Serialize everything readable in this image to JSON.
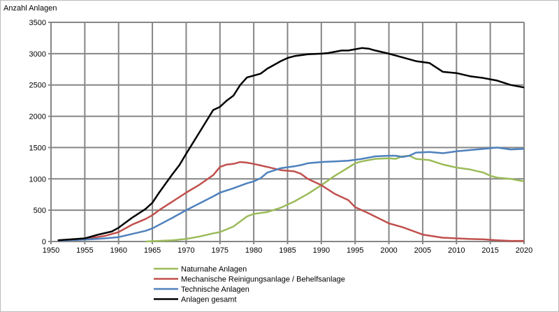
{
  "chart_data": {
    "type": "line",
    "title": "",
    "ylabel": "Anzahl Anlagen",
    "xlabel": "",
    "xlim": [
      1950,
      2020
    ],
    "ylim": [
      0,
      3500
    ],
    "xticks": [
      1950,
      1955,
      1960,
      1965,
      1970,
      1975,
      1980,
      1985,
      1990,
      1995,
      2000,
      2005,
      2010,
      2015,
      2020
    ],
    "yticks": [
      0,
      500,
      1000,
      1500,
      2000,
      2500,
      3000,
      3500
    ],
    "grid": true,
    "legend_position": "bottom",
    "series": [
      {
        "name": "Naturnahe Anlagen",
        "color": "#9bbb59",
        "x": [
          1964,
          1968,
          1970,
          1972,
          1974,
          1975,
          1977,
          1979,
          1980,
          1982,
          1984,
          1986,
          1988,
          1990,
          1992,
          1994,
          1995,
          1996,
          1998,
          2000,
          2001,
          2002,
          2003,
          2004,
          2006,
          2008,
          2010,
          2012,
          2014,
          2015,
          2016,
          2018,
          2020
        ],
        "y": [
          0,
          20,
          40,
          80,
          130,
          150,
          240,
          400,
          440,
          470,
          540,
          640,
          760,
          900,
          1050,
          1180,
          1250,
          1280,
          1320,
          1330,
          1320,
          1360,
          1370,
          1320,
          1300,
          1230,
          1180,
          1150,
          1100,
          1050,
          1020,
          1000,
          960
        ]
      },
      {
        "name": "Mechanische Reinigungsanlage / Behelfsanlage",
        "color": "#c0504d",
        "x": [
          1951,
          1955,
          1958,
          1960,
          1962,
          1964,
          1965,
          1966,
          1968,
          1970,
          1972,
          1974,
          1975,
          1976,
          1977,
          1978,
          1979,
          1980,
          1982,
          1984,
          1986,
          1987,
          1988,
          1990,
          1991,
          1992,
          1994,
          1995,
          1997,
          2000,
          2002,
          2004,
          2005,
          2008,
          2010,
          2012,
          2014,
          2016,
          2018,
          2020
        ],
        "y": [
          15,
          40,
          90,
          150,
          270,
          360,
          420,
          500,
          640,
          780,
          910,
          1060,
          1190,
          1230,
          1240,
          1270,
          1260,
          1240,
          1190,
          1140,
          1120,
          1080,
          1000,
          900,
          830,
          760,
          660,
          550,
          450,
          290,
          230,
          150,
          110,
          60,
          50,
          40,
          35,
          20,
          10,
          10
        ]
      },
      {
        "name": "Technische Anlagen",
        "color": "#4f81bd",
        "x": [
          1951,
          1955,
          1958,
          1960,
          1962,
          1964,
          1965,
          1968,
          1970,
          1972,
          1974,
          1975,
          1977,
          1979,
          1980,
          1981,
          1982,
          1984,
          1986,
          1987,
          1988,
          1990,
          1992,
          1994,
          1996,
          1998,
          2000,
          2001,
          2002,
          2003,
          2004,
          2006,
          2008,
          2010,
          2012,
          2014,
          2016,
          2018,
          2020
        ],
        "y": [
          15,
          30,
          50,
          70,
          120,
          170,
          210,
          380,
          500,
          610,
          720,
          780,
          850,
          930,
          960,
          1010,
          1100,
          1170,
          1200,
          1220,
          1250,
          1270,
          1280,
          1290,
          1320,
          1360,
          1370,
          1370,
          1350,
          1370,
          1420,
          1430,
          1410,
          1440,
          1460,
          1480,
          1500,
          1470,
          1480
        ]
      },
      {
        "name": "Anlagen gesamt",
        "color": "#000000",
        "x": [
          1951,
          1953,
          1955,
          1957,
          1959,
          1960,
          1962,
          1964,
          1965,
          1966,
          1968,
          1969,
          1970,
          1972,
          1974,
          1975,
          1976,
          1977,
          1978,
          1979,
          1980,
          1981,
          1982,
          1983,
          1984,
          1985,
          1986,
          1988,
          1990,
          1991,
          1993,
          1994,
          1996,
          1997,
          1998,
          2000,
          2002,
          2004,
          2006,
          2008,
          2010,
          2012,
          2014,
          2015,
          2016,
          2018,
          2020
        ],
        "y": [
          20,
          35,
          50,
          110,
          160,
          220,
          380,
          520,
          620,
          780,
          1080,
          1220,
          1400,
          1750,
          2100,
          2150,
          2250,
          2330,
          2500,
          2620,
          2650,
          2680,
          2760,
          2820,
          2880,
          2930,
          2960,
          2990,
          3000,
          3010,
          3050,
          3050,
          3090,
          3080,
          3050,
          3000,
          2940,
          2880,
          2850,
          2710,
          2690,
          2640,
          2610,
          2590,
          2570,
          2500,
          2460
        ]
      }
    ]
  }
}
